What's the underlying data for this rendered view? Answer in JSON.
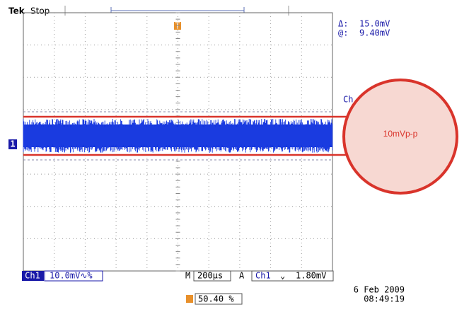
{
  "header": {
    "brand": "Tek",
    "status": "Stop"
  },
  "cursor": {
    "delta_label": "Δ:",
    "delta_value": "15.0mV",
    "at_label": "@:",
    "at_value": "9.40mV"
  },
  "channel_tag": "Ch",
  "markers": {
    "trigger": "T",
    "channel": "1"
  },
  "annotation": "10mVp-p",
  "footer": {
    "channel": "Ch1",
    "scale": "10.0mV∿%",
    "timebase_label": "M",
    "timebase": "200µs",
    "trigger_label": "A",
    "trigger_source": "Ch1",
    "trigger_slope": "⌄",
    "trigger_level": "1.80mV",
    "date": "6 Feb  2009",
    "time": "08:49:19",
    "trigger_position": "50.40 %"
  }
}
